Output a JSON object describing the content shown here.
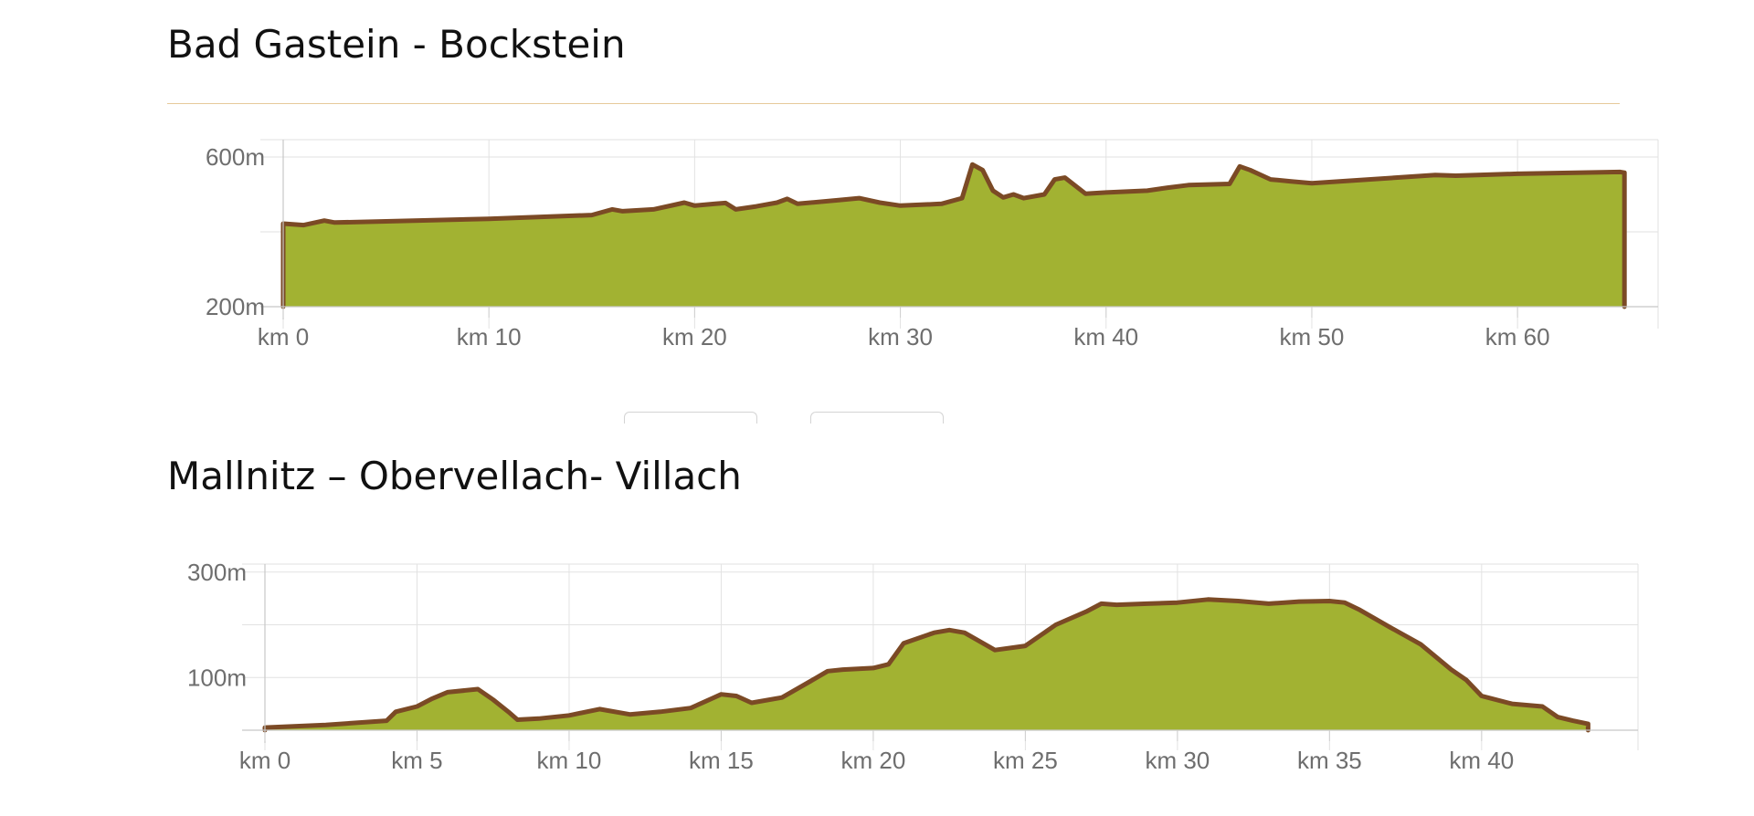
{
  "chart_data": [
    {
      "type": "area",
      "title": "Bad Gastein - Bockstein",
      "xlabel": "",
      "ylabel": "",
      "grid": true,
      "colors": {
        "fill": "#a2b232",
        "line": "#7b4a25"
      },
      "xlim": [
        0,
        65.5
      ],
      "ylim": [
        200,
        800
      ],
      "x_ticks": [
        0,
        10,
        20,
        30,
        40,
        50,
        60
      ],
      "x_tick_labels": [
        "km 0",
        "km 10",
        "km 20",
        "km 30",
        "km 40",
        "km 50",
        "km 60"
      ],
      "y_ticks": [
        200,
        600
      ],
      "y_tick_labels": [
        "200m",
        "600m"
      ],
      "series": [
        {
          "x": [
            0,
            1,
            2,
            2.5,
            5,
            10,
            15,
            16,
            16.5,
            18,
            19,
            19.5,
            20,
            21,
            21.5,
            22,
            23,
            24,
            24.5,
            25,
            27,
            28,
            29,
            30,
            32,
            33,
            33.5,
            34,
            34.5,
            35,
            35.5,
            36,
            37,
            37.5,
            38,
            39,
            40,
            42,
            43,
            44,
            46,
            46.5,
            47,
            48,
            49,
            50,
            55,
            56,
            57,
            60,
            65,
            65.2
          ],
          "y": [
            422,
            418,
            430,
            425,
            428,
            435,
            445,
            460,
            455,
            460,
            472,
            478,
            470,
            475,
            477,
            460,
            468,
            478,
            488,
            475,
            485,
            490,
            478,
            470,
            475,
            490,
            580,
            565,
            510,
            492,
            500,
            490,
            500,
            540,
            545,
            502,
            505,
            510,
            518,
            525,
            528,
            575,
            565,
            540,
            535,
            530,
            548,
            552,
            550,
            555,
            560,
            558
          ]
        }
      ]
    },
    {
      "type": "area",
      "title": "Mallnitz – Obervellach- Villach",
      "xlabel": "",
      "ylabel": "",
      "grid": true,
      "colors": {
        "fill": "#a2b232",
        "line": "#7b4a25"
      },
      "xlim": [
        0,
        44.3
      ],
      "ylim": [
        0,
        400
      ],
      "x_ticks": [
        0,
        5,
        10,
        15,
        20,
        25,
        30,
        35,
        40
      ],
      "x_tick_labels": [
        "km 0",
        "km 5",
        "km 10",
        "km 15",
        "km 20",
        "km 25",
        "km 30",
        "km 35",
        "km 40"
      ],
      "y_ticks": [
        100,
        300
      ],
      "y_tick_labels": [
        "100m",
        "300m"
      ],
      "series": [
        {
          "x": [
            0,
            2,
            4,
            4.3,
            5,
            5.5,
            6,
            7,
            7.5,
            8,
            8.3,
            9,
            10,
            11,
            12,
            13,
            14,
            14.5,
            15,
            15.5,
            16,
            17,
            18,
            18.5,
            19,
            20,
            20.5,
            21,
            22,
            22.5,
            23,
            24,
            25,
            26,
            27,
            27.5,
            28,
            29,
            30,
            31,
            32,
            33,
            34,
            35,
            35.5,
            36,
            37,
            38,
            39,
            39.5,
            40,
            41,
            42,
            42.5,
            43,
            43.5
          ],
          "y": [
            5,
            10,
            18,
            35,
            45,
            60,
            72,
            78,
            58,
            35,
            20,
            22,
            28,
            40,
            30,
            35,
            42,
            55,
            68,
            65,
            52,
            62,
            95,
            112,
            115,
            118,
            125,
            165,
            185,
            190,
            185,
            152,
            160,
            200,
            225,
            240,
            238,
            240,
            242,
            248,
            245,
            240,
            244,
            245,
            242,
            228,
            195,
            163,
            115,
            95,
            65,
            50,
            45,
            25,
            18,
            12
          ]
        }
      ]
    }
  ]
}
